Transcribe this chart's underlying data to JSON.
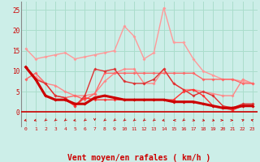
{
  "background_color": "#cceee8",
  "grid_color": "#aaddcc",
  "xlabel": "Vent moyen/en rafales ( km/h )",
  "xlabel_color": "#cc0000",
  "xlabel_fontsize": 7,
  "xtick_labels": [
    "0",
    "1",
    "2",
    "3",
    "4",
    "5",
    "6",
    "7",
    "8",
    "9",
    "10",
    "11",
    "12",
    "13",
    "14",
    "15",
    "16",
    "17",
    "18",
    "19",
    "20",
    "21",
    "22",
    "23"
  ],
  "ytick_labels": [
    "0",
    "5",
    "10",
    "15",
    "20",
    "25"
  ],
  "yticks": [
    0,
    5,
    10,
    15,
    20,
    25
  ],
  "ylim": [
    -3.5,
    27
  ],
  "xlim": [
    -0.5,
    23.5
  ],
  "lines": [
    {
      "x": [
        0,
        1,
        2,
        3,
        4,
        5,
        6,
        7,
        8,
        9,
        10,
        11,
        12,
        13,
        14,
        15,
        16,
        17,
        18,
        19,
        20,
        21,
        22,
        23
      ],
      "y": [
        15.5,
        13.0,
        13.5,
        14.0,
        14.5,
        13.0,
        13.5,
        14.0,
        14.5,
        15.0,
        21.0,
        18.5,
        13.0,
        14.5,
        25.5,
        17.0,
        17.0,
        13.0,
        10.0,
        9.0,
        8.0,
        8.0,
        7.5,
        7.0
      ],
      "color": "#ff9999",
      "linewidth": 1.0,
      "marker": "D",
      "markersize": 2.0,
      "zorder": 2
    },
    {
      "x": [
        0,
        1,
        2,
        3,
        4,
        5,
        6,
        7,
        8,
        9,
        10,
        11,
        12,
        13,
        14,
        15,
        16,
        17,
        18,
        19,
        20,
        21,
        22,
        23
      ],
      "y": [
        11.0,
        8.5,
        7.0,
        6.5,
        5.0,
        4.0,
        4.0,
        4.5,
        7.5,
        9.5,
        10.5,
        10.5,
        7.0,
        7.0,
        10.5,
        7.0,
        5.5,
        5.5,
        5.0,
        4.5,
        4.0,
        4.0,
        8.0,
        7.0
      ],
      "color": "#ff8888",
      "linewidth": 1.0,
      "marker": "D",
      "markersize": 2.0,
      "zorder": 3
    },
    {
      "x": [
        0,
        1,
        2,
        3,
        4,
        5,
        6,
        7,
        8,
        9,
        10,
        11,
        12,
        13,
        14,
        15,
        16,
        17,
        18,
        19,
        20,
        21,
        22,
        23
      ],
      "y": [
        8.0,
        9.5,
        7.0,
        4.0,
        3.5,
        4.0,
        3.0,
        4.5,
        9.5,
        9.5,
        9.5,
        9.5,
        9.5,
        9.5,
        9.5,
        9.5,
        9.5,
        9.5,
        8.0,
        8.0,
        8.0,
        8.0,
        7.0,
        7.0
      ],
      "color": "#ff6666",
      "linewidth": 1.0,
      "marker": "D",
      "markersize": 2.0,
      "zorder": 3
    },
    {
      "x": [
        0,
        1,
        2,
        3,
        4,
        5,
        6,
        7,
        8,
        9,
        10,
        11,
        12,
        13,
        14,
        15,
        16,
        17,
        18,
        19,
        20,
        21,
        22,
        23
      ],
      "y": [
        11.0,
        8.0,
        7.0,
        4.0,
        3.5,
        1.5,
        4.0,
        10.5,
        10.0,
        10.5,
        7.5,
        7.0,
        7.0,
        8.0,
        10.5,
        7.0,
        5.5,
        4.0,
        5.0,
        4.0,
        1.5,
        1.0,
        2.0,
        2.0
      ],
      "color": "#dd3333",
      "linewidth": 1.0,
      "marker": "D",
      "markersize": 2.0,
      "zorder": 4
    },
    {
      "x": [
        0,
        1,
        2,
        3,
        4,
        5,
        6,
        7,
        8,
        9,
        10,
        11,
        12,
        13,
        14,
        15,
        16,
        17,
        18,
        19,
        20,
        21,
        22,
        23
      ],
      "y": [
        11.0,
        8.0,
        4.0,
        3.0,
        3.0,
        2.0,
        2.0,
        3.5,
        4.0,
        3.5,
        3.0,
        3.0,
        3.0,
        3.0,
        3.0,
        2.5,
        2.5,
        2.5,
        2.0,
        1.5,
        1.0,
        1.0,
        1.5,
        1.5
      ],
      "color": "#cc0000",
      "linewidth": 2.2,
      "marker": "D",
      "markersize": 2.0,
      "zorder": 6
    },
    {
      "x": [
        0,
        1,
        2,
        3,
        4,
        5,
        6,
        7,
        8,
        9,
        10,
        11,
        12,
        13,
        14,
        15,
        16,
        17,
        18,
        19,
        20,
        21,
        22,
        23
      ],
      "y": [
        11.0,
        8.0,
        4.0,
        3.0,
        3.0,
        1.5,
        3.5,
        3.0,
        3.0,
        3.0,
        3.0,
        3.0,
        3.0,
        3.0,
        3.0,
        3.0,
        5.0,
        5.5,
        4.0,
        1.5,
        1.0,
        0.5,
        1.5,
        1.5
      ],
      "color": "#ff3333",
      "linewidth": 1.0,
      "marker": "D",
      "markersize": 2.0,
      "zorder": 5
    }
  ],
  "arrow_color": "#cc0000",
  "arrow_angles": [
    225,
    225,
    200,
    200,
    200,
    225,
    200,
    180,
    200,
    200,
    200,
    200,
    200,
    200,
    225,
    270,
    200,
    135,
    135,
    135,
    90,
    90,
    45,
    315
  ]
}
